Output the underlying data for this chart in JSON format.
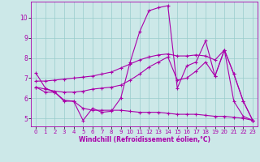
{
  "xlabel": "Windchill (Refroidissement éolien,°C)",
  "bg_color": "#cce8e8",
  "line_color": "#aa00aa",
  "grid_color": "#99cccc",
  "xlim": [
    -0.5,
    23.5
  ],
  "ylim": [
    4.6,
    10.8
  ],
  "xticks": [
    0,
    1,
    2,
    3,
    4,
    5,
    6,
    7,
    8,
    9,
    10,
    11,
    12,
    13,
    14,
    15,
    16,
    17,
    18,
    19,
    20,
    21,
    22,
    23
  ],
  "yticks": [
    5,
    6,
    7,
    8,
    9,
    10
  ],
  "lines": [
    [
      7.25,
      6.5,
      6.3,
      5.9,
      5.85,
      4.9,
      5.5,
      5.3,
      5.35,
      6.0,
      7.8,
      9.3,
      10.35,
      10.5,
      10.6,
      6.5,
      7.6,
      7.8,
      8.85,
      7.1,
      8.4,
      5.85,
      5.1,
      4.9
    ],
    [
      6.55,
      6.3,
      6.3,
      5.85,
      5.85,
      5.5,
      5.4,
      5.4,
      5.4,
      5.4,
      5.35,
      5.3,
      5.3,
      5.3,
      5.25,
      5.2,
      5.2,
      5.2,
      5.15,
      5.1,
      5.1,
      5.05,
      5.0,
      4.9
    ],
    [
      6.55,
      6.45,
      6.35,
      6.3,
      6.3,
      6.35,
      6.45,
      6.5,
      6.55,
      6.65,
      6.9,
      7.2,
      7.55,
      7.8,
      8.05,
      6.9,
      7.0,
      7.35,
      7.8,
      7.1,
      8.4,
      7.2,
      5.85,
      4.9
    ],
    [
      6.85,
      6.85,
      6.9,
      6.95,
      7.0,
      7.05,
      7.1,
      7.2,
      7.3,
      7.5,
      7.7,
      7.9,
      8.05,
      8.15,
      8.2,
      8.1,
      8.1,
      8.15,
      8.1,
      7.9,
      8.4,
      7.2,
      5.85,
      4.9
    ]
  ]
}
